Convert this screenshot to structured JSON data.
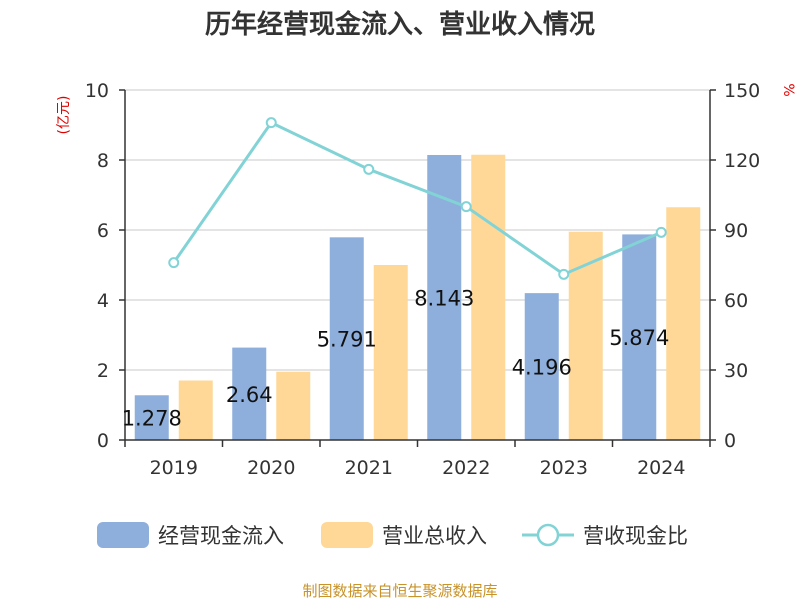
{
  "chart_data": {
    "type": "bar",
    "title": "历年经营现金流入、营业收入情况",
    "y_unit_left": "(亿元)",
    "y_unit_right": "%",
    "categories": [
      "2019",
      "2020",
      "2021",
      "2022",
      "2023",
      "2024"
    ],
    "ylim_left": [
      0,
      10
    ],
    "yticks_left": [
      "0",
      "2",
      "4",
      "6",
      "8",
      "10"
    ],
    "ylim_right": [
      0,
      150
    ],
    "yticks_right": [
      "0",
      "30",
      "60",
      "90",
      "120",
      "150"
    ],
    "grid": true,
    "legend_position": "bottom",
    "series": [
      {
        "name": "经营现金流入",
        "kind": "bar",
        "axis": "left",
        "color": "#8eaedb",
        "values": [
          1.278,
          2.64,
          5.791,
          8.143,
          4.196,
          5.874
        ],
        "labels": [
          "1.278",
          "2.64",
          "5.791",
          "8.143",
          "4.196",
          "5.874"
        ]
      },
      {
        "name": "营业总收入",
        "kind": "bar",
        "axis": "left",
        "color": "#ffd898",
        "values": [
          1.7,
          1.95,
          5.0,
          8.15,
          5.95,
          6.65
        ]
      },
      {
        "name": "营收现金比",
        "kind": "line",
        "axis": "right",
        "color": "#82d3d6",
        "values": [
          76,
          136,
          116,
          100,
          71,
          89
        ]
      }
    ]
  },
  "source": "制图数据来自恒生聚源数据库"
}
